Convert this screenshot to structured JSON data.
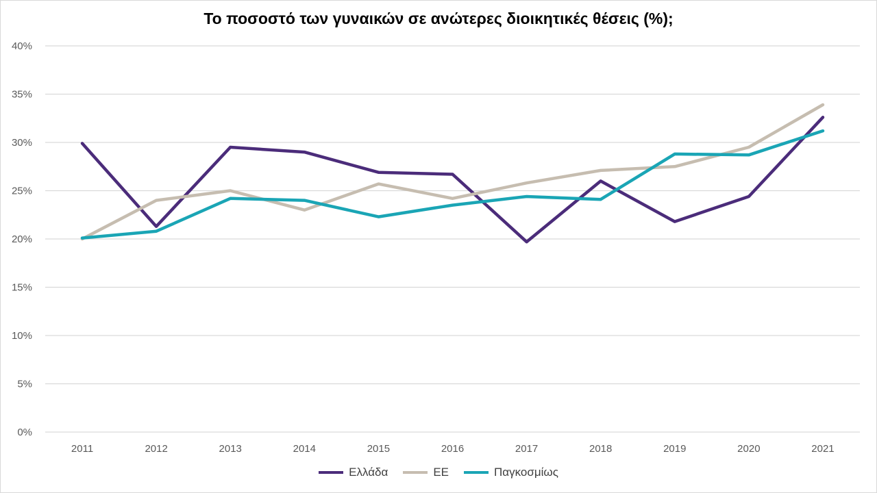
{
  "chart_data": {
    "type": "line",
    "title": "Το ποσοστό των γυναικών σε ανώτερες διοικητικές θέσεις (%);",
    "xlabel": "",
    "ylabel": "",
    "categories": [
      "2011",
      "2012",
      "2013",
      "2014",
      "2015",
      "2016",
      "2017",
      "2018",
      "2019",
      "2020",
      "2021"
    ],
    "ylim": [
      0,
      40
    ],
    "yticks": [
      0,
      5,
      10,
      15,
      20,
      25,
      30,
      35,
      40
    ],
    "ytick_labels": [
      "0%",
      "5%",
      "10%",
      "15%",
      "20%",
      "25%",
      "30%",
      "35%",
      "40%"
    ],
    "grid": true,
    "legend_position": "bottom",
    "series": [
      {
        "name": "Ελλάδα",
        "color": "#4b2c7a",
        "values": [
          29.9,
          21.3,
          29.5,
          29.0,
          26.9,
          26.7,
          19.7,
          26.0,
          21.8,
          24.4,
          32.6
        ]
      },
      {
        "name": "ΕΕ",
        "color": "#c6bdb0",
        "values": [
          20.0,
          24.0,
          25.0,
          23.0,
          25.7,
          24.2,
          25.8,
          27.1,
          27.5,
          29.5,
          33.9
        ]
      },
      {
        "name": "Παγκοσμίως",
        "color": "#1aa5b5",
        "values": [
          20.1,
          20.8,
          24.2,
          24.0,
          22.3,
          23.5,
          24.4,
          24.1,
          28.8,
          28.7,
          31.2
        ]
      }
    ]
  }
}
